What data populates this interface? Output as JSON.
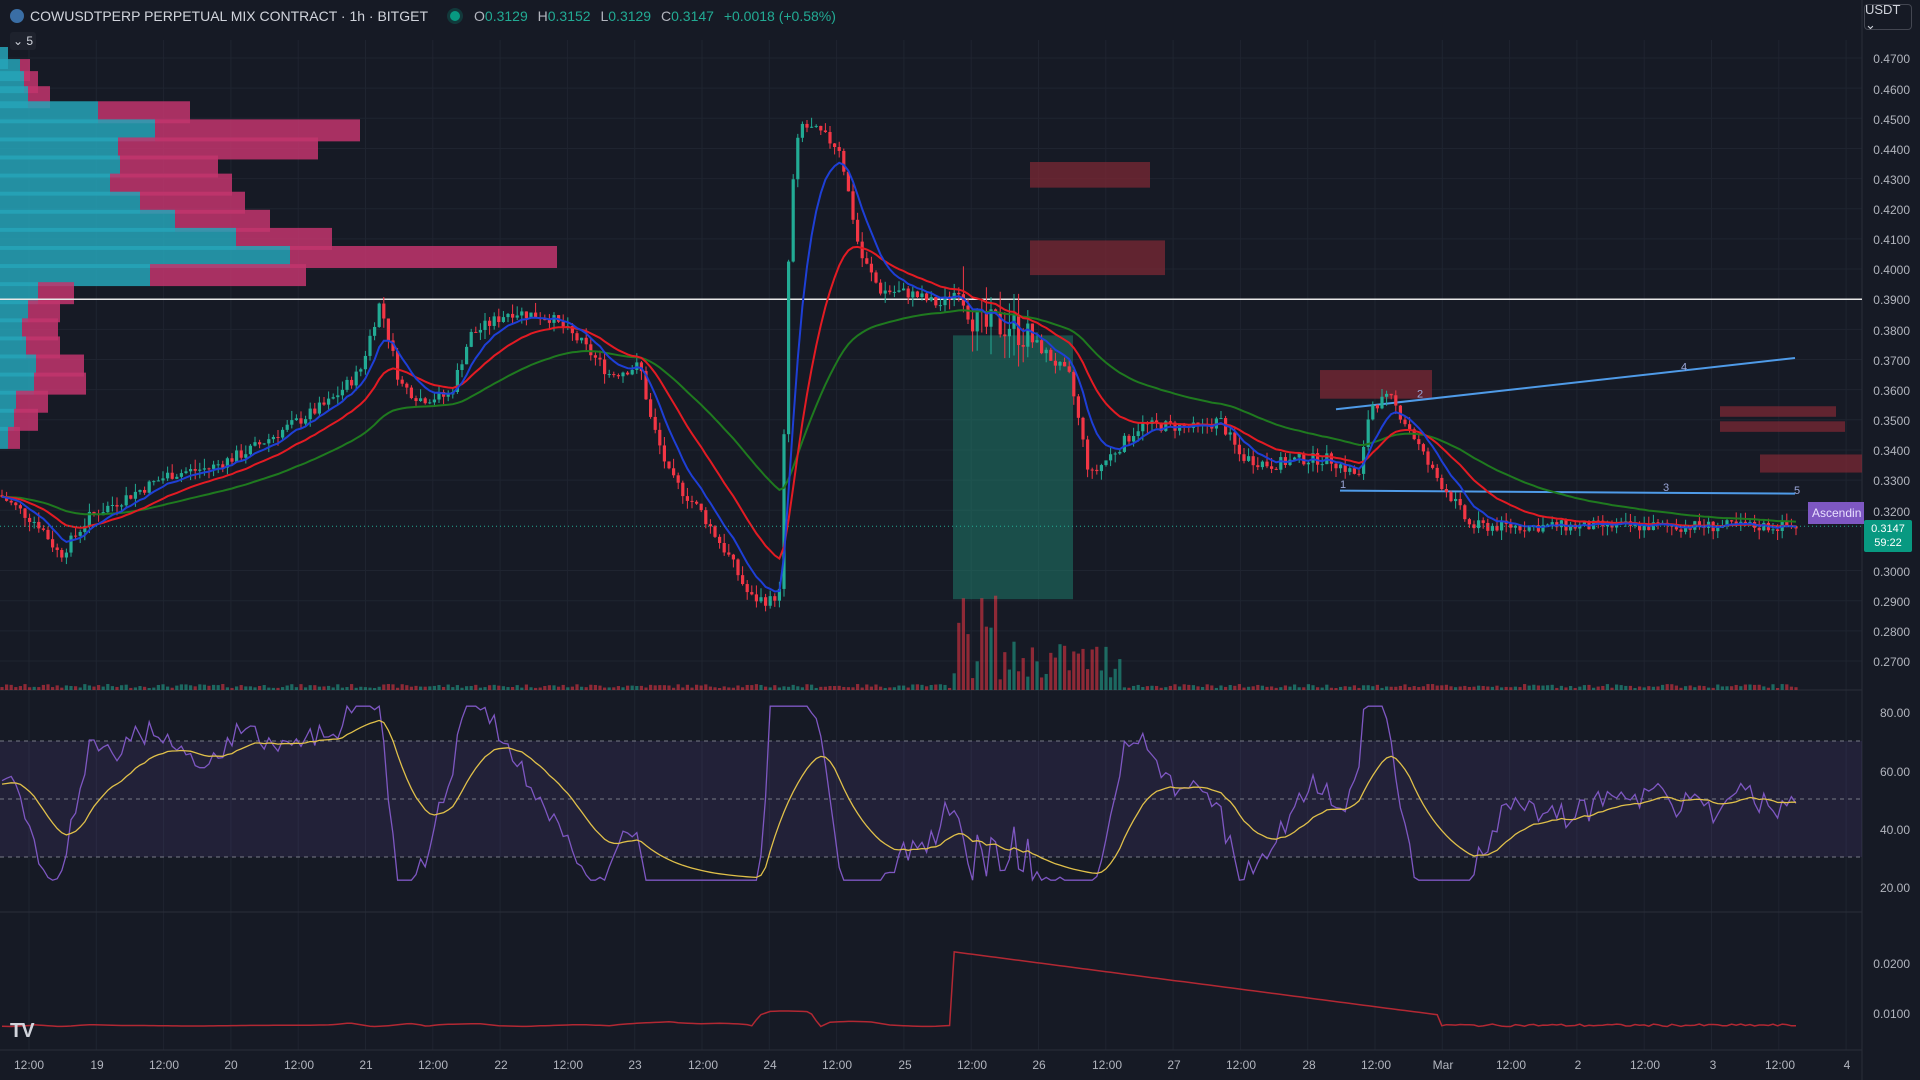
{
  "header": {
    "title": "COWUSDTPERP PERPETUAL MIX CONTRACT · 1h · BITGET",
    "open_label": "O",
    "open": "0.3129",
    "high_label": "H",
    "high": "0.3152",
    "low_label": "L",
    "low": "0.3129",
    "close_label": "C",
    "close": "0.3147",
    "change": "+0.0018 (+0.58%)",
    "currency_button": "USDT ⌄",
    "collapse_button": "⌄ 5"
  },
  "colors": {
    "background": "#161a25",
    "up": "#22ab94",
    "down": "#f23645",
    "ema_fast": "#1e3fd6",
    "ema_mid": "#e31b23",
    "ema_slow": "#1f7a1f",
    "rsi": "#7e57c2",
    "rsi_ma": "#e0c04a"
  },
  "price_axis": [
    "0.4700",
    "0.4600",
    "0.4500",
    "0.4400",
    "0.4300",
    "0.4200",
    "0.4100",
    "0.4000",
    "0.3900",
    "0.3800",
    "0.3700",
    "0.3600",
    "0.3500",
    "0.3400",
    "0.3300",
    "0.3200",
    "0.3000",
    "0.2900",
    "0.2800",
    "0.2700"
  ],
  "last_price": {
    "value": "0.3147",
    "countdown": "59:22"
  },
  "pattern_label": "Ascendin",
  "rsi_axis": [
    "80.00",
    "60.00",
    "40.00",
    "20.00"
  ],
  "third_axis": [
    "0.0200",
    "0.0100"
  ],
  "time_axis": [
    "12:00",
    "19",
    "12:00",
    "20",
    "12:00",
    "21",
    "12:00",
    "22",
    "12:00",
    "23",
    "12:00",
    "24",
    "12:00",
    "25",
    "12:00",
    "26",
    "12:00",
    "27",
    "12:00",
    "28",
    "12:00",
    "Mar",
    "12:00",
    "2",
    "12:00",
    "3",
    "12:00",
    "4"
  ],
  "pattern_points": [
    "1",
    "2",
    "3",
    "4",
    "5"
  ],
  "watermark": "TV",
  "chart_data": {
    "type": "candlestick",
    "x_ticks": [
      "12:00",
      "19",
      "12:00",
      "20",
      "12:00",
      "21",
      "12:00",
      "22",
      "12:00",
      "23",
      "12:00",
      "24",
      "12:00",
      "25",
      "12:00",
      "26",
      "12:00",
      "27",
      "12:00",
      "28",
      "12:00",
      "Mar",
      "12:00",
      "2",
      "12:00",
      "3",
      "12:00",
      "4"
    ],
    "price_ticks": [
      0.47,
      0.46,
      0.45,
      0.44,
      0.43,
      0.42,
      0.41,
      0.4,
      0.39,
      0.38,
      0.37,
      0.36,
      0.35,
      0.34,
      0.33,
      0.32,
      0.3,
      0.29,
      0.28,
      0.27
    ],
    "horizontal_line": 0.39,
    "close_path": [
      [
        0,
        0.325
      ],
      [
        40,
        0.315
      ],
      [
        60,
        0.305
      ],
      [
        90,
        0.318
      ],
      [
        130,
        0.325
      ],
      [
        170,
        0.332
      ],
      [
        210,
        0.334
      ],
      [
        250,
        0.34
      ],
      [
        290,
        0.348
      ],
      [
        330,
        0.356
      ],
      [
        360,
        0.366
      ],
      [
        380,
        0.389
      ],
      [
        400,
        0.362
      ],
      [
        420,
        0.357
      ],
      [
        450,
        0.358
      ],
      [
        470,
        0.378
      ],
      [
        510,
        0.386
      ],
      [
        550,
        0.384
      ],
      [
        580,
        0.376
      ],
      [
        610,
        0.365
      ],
      [
        640,
        0.368
      ],
      [
        650,
        0.351
      ],
      [
        670,
        0.331
      ],
      [
        700,
        0.32
      ],
      [
        730,
        0.304
      ],
      [
        750,
        0.291
      ],
      [
        770,
        0.29
      ],
      [
        780,
        0.293
      ],
      [
        790,
        0.42
      ],
      [
        800,
        0.448
      ],
      [
        820,
        0.445
      ],
      [
        840,
        0.44
      ],
      [
        860,
        0.405
      ],
      [
        880,
        0.393
      ],
      [
        910,
        0.392
      ],
      [
        940,
        0.388
      ],
      [
        960,
        0.394
      ],
      [
        980,
        0.38
      ],
      [
        1010,
        0.382
      ],
      [
        1040,
        0.374
      ],
      [
        1070,
        0.364
      ],
      [
        1090,
        0.331
      ],
      [
        1110,
        0.338
      ],
      [
        1140,
        0.348
      ],
      [
        1170,
        0.348
      ],
      [
        1200,
        0.347
      ],
      [
        1220,
        0.35
      ],
      [
        1240,
        0.338
      ],
      [
        1270,
        0.335
      ],
      [
        1300,
        0.337
      ],
      [
        1330,
        0.337
      ],
      [
        1360,
        0.331
      ],
      [
        1370,
        0.355
      ],
      [
        1390,
        0.357
      ],
      [
        1410,
        0.347
      ],
      [
        1430,
        0.334
      ],
      [
        1450,
        0.325
      ],
      [
        1470,
        0.3147
      ]
    ],
    "rsi_levels": {
      "upper": 70,
      "middle": 50,
      "lower": 30
    },
    "rsi_ticks": [
      80,
      60,
      40,
      20
    ],
    "indicator_ticks": [
      0.02,
      0.01
    ]
  }
}
